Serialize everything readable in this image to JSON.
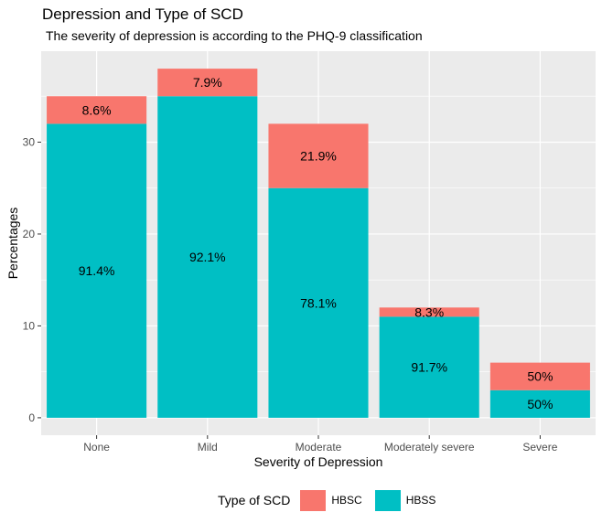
{
  "chart_data": {
    "type": "bar",
    "stacked": true,
    "title": "Depression and Type of SCD",
    "subtitle": "The severity of depression is according to the PHQ-9 classification",
    "xlabel": "Severity of Depression",
    "ylabel": "Percentages",
    "categories": [
      "None",
      "Mild",
      "Moderate",
      "Moderately severe",
      "Severe"
    ],
    "yticks": [
      0,
      10,
      20,
      30
    ],
    "ylim": [
      -1.9,
      39.9
    ],
    "grid": true,
    "legend_title": "Type of SCD",
    "legend_position": "bottom",
    "series": [
      {
        "name": "HBSS",
        "color": "#00bfc4",
        "values": [
          32,
          35,
          25,
          11,
          3
        ],
        "labels": [
          "91.4%",
          "92.1%",
          "78.1%",
          "91.7%",
          "50%"
        ]
      },
      {
        "name": "HBSC",
        "color": "#f8766d",
        "values": [
          3,
          3,
          7,
          1,
          3
        ],
        "labels": [
          "8.6%",
          "7.9%",
          "21.9%",
          "8.3%",
          "50%"
        ]
      }
    ]
  }
}
